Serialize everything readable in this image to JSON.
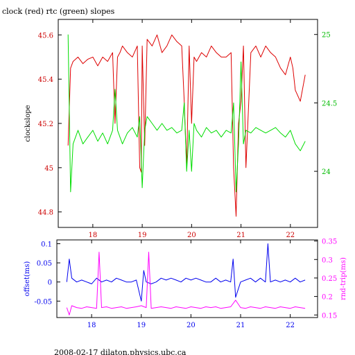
{
  "title": "clock (red) rtc (green) slopes",
  "footer": "2008-02-17  dilaton.physics.ubc.ca",
  "colors": {
    "clock": "#dd0000",
    "rtc": "#00dd00",
    "offset": "#0000ee",
    "rtrip": "#ff00ff",
    "axis": "#000000"
  },
  "chart_data": [
    {
      "type": "line",
      "title": "clock (red) rtc (green) slopes",
      "ylabel": "clockslope",
      "ylim": [
        44.73,
        45.67
      ],
      "y2lim": [
        23.59,
        25.11
      ],
      "xlim": [
        17.3,
        22.55
      ],
      "x_ticks": [
        18,
        19,
        20,
        21,
        22
      ],
      "x_tick_labels": [
        "18",
        "19",
        "20",
        "21",
        "22"
      ],
      "y_ticks": [
        44.8,
        45,
        45.2,
        45.4,
        45.6
      ],
      "y_tick_labels": [
        "44.8",
        "45",
        "45.2",
        "45.4",
        "45.6"
      ],
      "y2_ticks": [
        24,
        24.5,
        25
      ],
      "y2_tick_labels": [
        "24",
        "24.5",
        "25"
      ],
      "grid": false,
      "series": [
        {
          "name": "clock",
          "axis": "left",
          "color": "#dd0000",
          "x": [
            17.5,
            17.55,
            17.6,
            17.7,
            17.8,
            17.9,
            18.0,
            18.1,
            18.2,
            18.3,
            18.4,
            18.45,
            18.5,
            18.55,
            18.6,
            18.7,
            18.8,
            18.9,
            18.95,
            18.98,
            19.0,
            19.05,
            19.1,
            19.2,
            19.3,
            19.4,
            19.5,
            19.6,
            19.7,
            19.8,
            19.85,
            19.9,
            19.95,
            20.0,
            20.05,
            20.1,
            20.2,
            20.3,
            20.4,
            20.5,
            20.6,
            20.7,
            20.8,
            20.85,
            20.9,
            20.95,
            21.0,
            21.05,
            21.1,
            21.2,
            21.3,
            21.4,
            21.5,
            21.6,
            21.7,
            21.8,
            21.9,
            22.0,
            22.05,
            22.1,
            22.2,
            22.3
          ],
          "y": [
            45.1,
            45.45,
            45.48,
            45.5,
            45.47,
            45.49,
            45.5,
            45.46,
            45.5,
            45.48,
            45.52,
            45.2,
            45.5,
            45.52,
            45.55,
            45.52,
            45.5,
            45.55,
            45.0,
            44.98,
            45.55,
            45.1,
            45.58,
            45.55,
            45.6,
            45.52,
            45.55,
            45.6,
            45.57,
            45.55,
            45.3,
            45.0,
            45.55,
            45.2,
            45.5,
            45.48,
            45.52,
            45.5,
            45.55,
            45.52,
            45.5,
            45.5,
            45.52,
            45.0,
            44.78,
            45.2,
            45.3,
            45.55,
            45.0,
            45.52,
            45.55,
            45.5,
            45.55,
            45.52,
            45.5,
            45.45,
            45.42,
            45.5,
            45.45,
            45.35,
            45.3,
            45.42
          ]
        },
        {
          "name": "rtc",
          "axis": "right",
          "color": "#00dd00",
          "x": [
            17.5,
            17.55,
            17.6,
            17.7,
            17.8,
            17.9,
            18.0,
            18.1,
            18.2,
            18.3,
            18.4,
            18.45,
            18.5,
            18.55,
            18.6,
            18.7,
            18.8,
            18.9,
            18.95,
            19.0,
            19.05,
            19.1,
            19.2,
            19.3,
            19.4,
            19.5,
            19.6,
            19.7,
            19.8,
            19.85,
            19.9,
            19.95,
            20.0,
            20.05,
            20.1,
            20.2,
            20.3,
            20.4,
            20.5,
            20.6,
            20.7,
            20.8,
            20.85,
            20.9,
            20.95,
            21.0,
            21.05,
            21.1,
            21.2,
            21.3,
            21.4,
            21.5,
            21.6,
            21.7,
            21.8,
            21.9,
            22.0,
            22.1,
            22.2,
            22.3
          ],
          "y": [
            25.0,
            23.85,
            24.2,
            24.3,
            24.2,
            24.25,
            24.3,
            24.22,
            24.28,
            24.2,
            24.3,
            24.6,
            24.3,
            24.25,
            24.2,
            24.28,
            24.32,
            24.25,
            24.4,
            23.88,
            24.3,
            24.4,
            24.35,
            24.3,
            24.35,
            24.3,
            24.32,
            24.28,
            24.3,
            24.5,
            24.0,
            24.3,
            24.0,
            24.35,
            24.3,
            24.25,
            24.32,
            24.28,
            24.3,
            24.25,
            24.3,
            24.28,
            24.5,
            23.85,
            24.2,
            24.8,
            24.2,
            24.3,
            24.28,
            24.32,
            24.3,
            24.28,
            24.3,
            24.32,
            24.28,
            24.25,
            24.3,
            24.2,
            24.15,
            24.22
          ]
        }
      ]
    },
    {
      "type": "line",
      "ylabel": "offset(ms)",
      "y2label": "rnd-trip(ms)",
      "ylim": [
        -0.093,
        0.11
      ],
      "y2lim": [
        0.143,
        0.353
      ],
      "xlim": [
        17.3,
        22.55
      ],
      "x_ticks": [
        18,
        19,
        20,
        21,
        22
      ],
      "x_tick_labels": [
        "18",
        "19",
        "20",
        "21",
        "22"
      ],
      "y_ticks": [
        -0.05,
        0,
        0.05,
        0.1
      ],
      "y_tick_labels": [
        "-0.05",
        "0",
        "0.05",
        "0.1"
      ],
      "y2_ticks": [
        0.15,
        0.2,
        0.25,
        0.3,
        0.35
      ],
      "y2_tick_labels": [
        "0.15",
        "0.2",
        "0.25",
        "0.3",
        "0.35"
      ],
      "grid": false,
      "series": [
        {
          "name": "offset",
          "axis": "left",
          "color": "#0000ee",
          "x": [
            17.5,
            17.55,
            17.6,
            17.7,
            17.8,
            17.9,
            18.0,
            18.1,
            18.2,
            18.3,
            18.4,
            18.5,
            18.6,
            18.7,
            18.8,
            18.9,
            19.0,
            19.05,
            19.1,
            19.2,
            19.3,
            19.4,
            19.5,
            19.6,
            19.7,
            19.8,
            19.9,
            20.0,
            20.1,
            20.2,
            20.3,
            20.4,
            20.5,
            20.6,
            20.7,
            20.8,
            20.85,
            20.9,
            21.0,
            21.1,
            21.2,
            21.3,
            21.4,
            21.5,
            21.55,
            21.6,
            21.7,
            21.8,
            21.9,
            22.0,
            22.1,
            22.2,
            22.3
          ],
          "y": [
            0.0,
            0.06,
            0.01,
            0.0,
            0.005,
            0.0,
            -0.005,
            0.01,
            0.0,
            0.005,
            0.0,
            0.01,
            0.005,
            0.0,
            0.0,
            0.005,
            -0.05,
            0.03,
            0.0,
            -0.005,
            0.0,
            0.01,
            0.005,
            0.01,
            0.005,
            0.0,
            0.01,
            0.005,
            0.01,
            0.005,
            0.0,
            0.0,
            0.01,
            0.0,
            0.005,
            0.0,
            0.06,
            -0.04,
            0.0,
            0.005,
            0.01,
            0.0,
            0.01,
            0.0,
            0.1,
            0.0,
            0.005,
            0.0,
            0.005,
            0.0,
            0.01,
            0.0,
            0.005
          ]
        },
        {
          "name": "rnd-trip",
          "axis": "right",
          "color": "#ff00ff",
          "x": [
            17.5,
            17.55,
            17.6,
            17.7,
            17.8,
            17.9,
            18.0,
            18.1,
            18.15,
            18.2,
            18.3,
            18.4,
            18.5,
            18.6,
            18.7,
            18.8,
            18.9,
            19.0,
            19.1,
            19.15,
            19.2,
            19.3,
            19.4,
            19.5,
            19.6,
            19.7,
            19.8,
            19.9,
            20.0,
            20.1,
            20.2,
            20.3,
            20.4,
            20.5,
            20.6,
            20.7,
            20.8,
            20.9,
            21.0,
            21.1,
            21.2,
            21.3,
            21.4,
            21.5,
            21.6,
            21.7,
            21.8,
            21.9,
            22.0,
            22.1,
            22.2,
            22.3
          ],
          "y": [
            0.17,
            0.15,
            0.175,
            0.17,
            0.168,
            0.172,
            0.17,
            0.168,
            0.32,
            0.17,
            0.172,
            0.168,
            0.17,
            0.172,
            0.168,
            0.17,
            0.172,
            0.175,
            0.17,
            0.32,
            0.168,
            0.17,
            0.172,
            0.17,
            0.168,
            0.172,
            0.17,
            0.168,
            0.172,
            0.17,
            0.168,
            0.172,
            0.17,
            0.172,
            0.168,
            0.17,
            0.172,
            0.19,
            0.17,
            0.168,
            0.172,
            0.17,
            0.168,
            0.172,
            0.17,
            0.168,
            0.172,
            0.17,
            0.168,
            0.172,
            0.17,
            0.168
          ]
        }
      ]
    }
  ]
}
